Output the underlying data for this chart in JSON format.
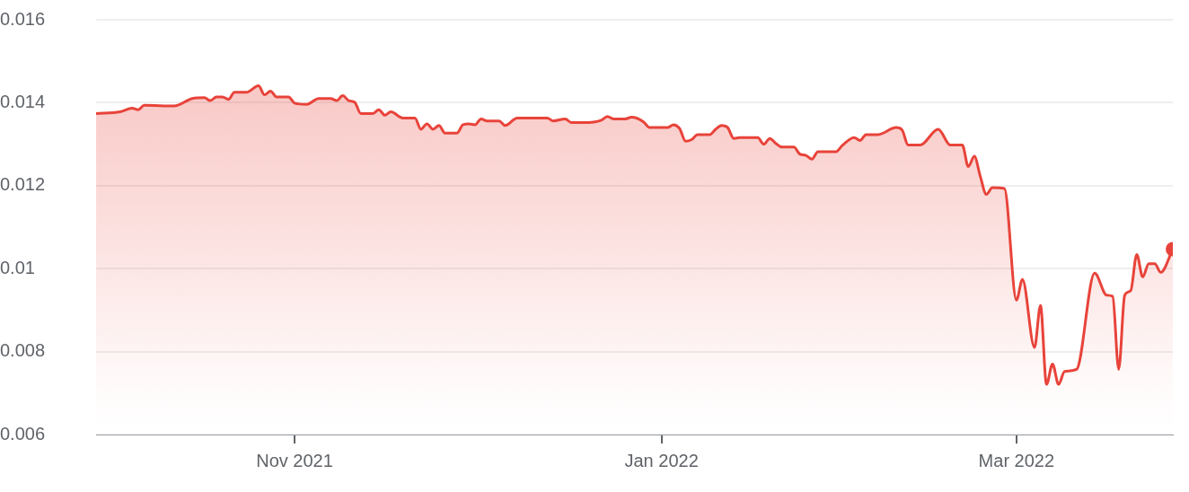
{
  "chart_data": {
    "type": "area",
    "x": [
      "2021-09-29",
      "2021-10-03",
      "2021-10-05",
      "2021-10-06",
      "2021-10-07",
      "2021-10-12",
      "2021-10-15",
      "2021-10-17",
      "2021-10-18",
      "2021-10-19",
      "2021-10-20",
      "2021-10-21",
      "2021-10-22",
      "2021-10-24",
      "2021-10-26",
      "2021-10-27",
      "2021-10-28",
      "2021-10-29",
      "2021-10-31",
      "2021-11-01",
      "2021-11-03",
      "2021-11-05",
      "2021-11-07",
      "2021-11-08",
      "2021-11-09",
      "2021-11-10",
      "2021-11-11",
      "2021-11-12",
      "2021-11-14",
      "2021-11-15",
      "2021-11-16",
      "2021-11-17",
      "2021-11-19",
      "2021-11-21",
      "2021-11-22",
      "2021-11-23",
      "2021-11-24",
      "2021-11-25",
      "2021-11-26",
      "2021-11-28",
      "2021-11-29",
      "2021-11-30",
      "2021-12-01",
      "2021-12-02",
      "2021-12-03",
      "2021-12-05",
      "2021-12-06",
      "2021-12-08",
      "2021-12-10",
      "2021-12-13",
      "2021-12-14",
      "2021-12-16",
      "2021-12-17",
      "2021-12-19",
      "2021-12-22",
      "2021-12-23",
      "2021-12-24",
      "2021-12-26",
      "2021-12-27",
      "2021-12-29",
      "2021-12-30",
      "2022-01-02",
      "2022-01-03",
      "2022-01-04",
      "2022-01-05",
      "2022-01-06",
      "2022-01-07",
      "2022-01-09",
      "2022-01-10",
      "2022-01-11",
      "2022-01-12",
      "2022-01-13",
      "2022-01-14",
      "2022-01-17",
      "2022-01-18",
      "2022-01-19",
      "2022-01-20",
      "2022-01-21",
      "2022-01-23",
      "2022-01-24",
      "2022-01-25",
      "2022-01-26",
      "2022-01-27",
      "2022-01-30",
      "2022-01-31",
      "2022-02-02",
      "2022-02-03",
      "2022-02-04",
      "2022-02-06",
      "2022-02-09",
      "2022-02-10",
      "2022-02-11",
      "2022-02-13",
      "2022-02-16",
      "2022-02-18",
      "2022-02-20",
      "2022-02-21",
      "2022-02-22",
      "2022-02-23",
      "2022-02-24",
      "2022-02-25",
      "2022-02-27",
      "2022-03-01",
      "2022-03-02",
      "2022-03-04",
      "2022-03-05",
      "2022-03-06",
      "2022-03-07",
      "2022-03-08",
      "2022-03-09",
      "2022-03-11",
      "2022-03-14",
      "2022-03-16",
      "2022-03-17",
      "2022-03-18",
      "2022-03-19",
      "2022-03-20",
      "2022-03-21",
      "2022-03-22",
      "2022-03-23",
      "2022-03-24",
      "2022-03-25",
      "2022-03-27"
    ],
    "series": [
      {
        "color": "#e8433a",
        "values": [
          0.01374,
          0.01378,
          0.01387,
          0.01383,
          0.01394,
          0.01392,
          0.0141,
          0.01412,
          0.01405,
          0.01414,
          0.01414,
          0.01408,
          0.01425,
          0.01425,
          0.01441,
          0.01419,
          0.01428,
          0.01414,
          0.01414,
          0.01399,
          0.01396,
          0.0141,
          0.0141,
          0.01405,
          0.01417,
          0.01405,
          0.01401,
          0.01374,
          0.01374,
          0.01383,
          0.0137,
          0.01378,
          0.01363,
          0.01363,
          0.01336,
          0.01349,
          0.01336,
          0.01345,
          0.01327,
          0.01327,
          0.01347,
          0.01349,
          0.01347,
          0.01361,
          0.01356,
          0.01356,
          0.01345,
          0.01363,
          0.01363,
          0.01363,
          0.01356,
          0.01361,
          0.01352,
          0.01352,
          0.01358,
          0.01367,
          0.01361,
          0.01361,
          0.01365,
          0.01354,
          0.0134,
          0.0134,
          0.01347,
          0.01338,
          0.01307,
          0.01311,
          0.01323,
          0.01323,
          0.01336,
          0.01345,
          0.0134,
          0.01314,
          0.01316,
          0.01316,
          0.013,
          0.01314,
          0.01302,
          0.01293,
          0.01293,
          0.01276,
          0.01273,
          0.01264,
          0.01282,
          0.01282,
          0.01296,
          0.01316,
          0.01309,
          0.01323,
          0.01323,
          0.0134,
          0.01334,
          0.01298,
          0.01298,
          0.01336,
          0.01298,
          0.01298,
          0.01246,
          0.01271,
          0.01222,
          0.01179,
          0.01195,
          0.01193,
          0.00924,
          0.00974,
          0.0081,
          0.00911,
          0.00721,
          0.0077,
          0.00721,
          0.00752,
          0.00757,
          0.00989,
          0.00936,
          0.00933,
          0.00757,
          0.00936,
          0.00947,
          0.01034,
          0.0098,
          0.01012,
          0.01012,
          0.00991,
          0.01047
        ]
      }
    ],
    "xlim": [
      "2021-09-29",
      "2022-03-27"
    ],
    "xticks": [
      {
        "value": "2021-11-01",
        "label": "Nov 2021"
      },
      {
        "value": "2022-01-01",
        "label": "Jan 2022"
      },
      {
        "value": "2022-03-01",
        "label": "Mar 2022"
      }
    ],
    "ylim": [
      0.006,
      0.016
    ],
    "yticks": [
      0.006,
      0.008,
      0.01,
      0.012,
      0.014,
      0.016
    ],
    "grid": "y",
    "legend": false
  }
}
